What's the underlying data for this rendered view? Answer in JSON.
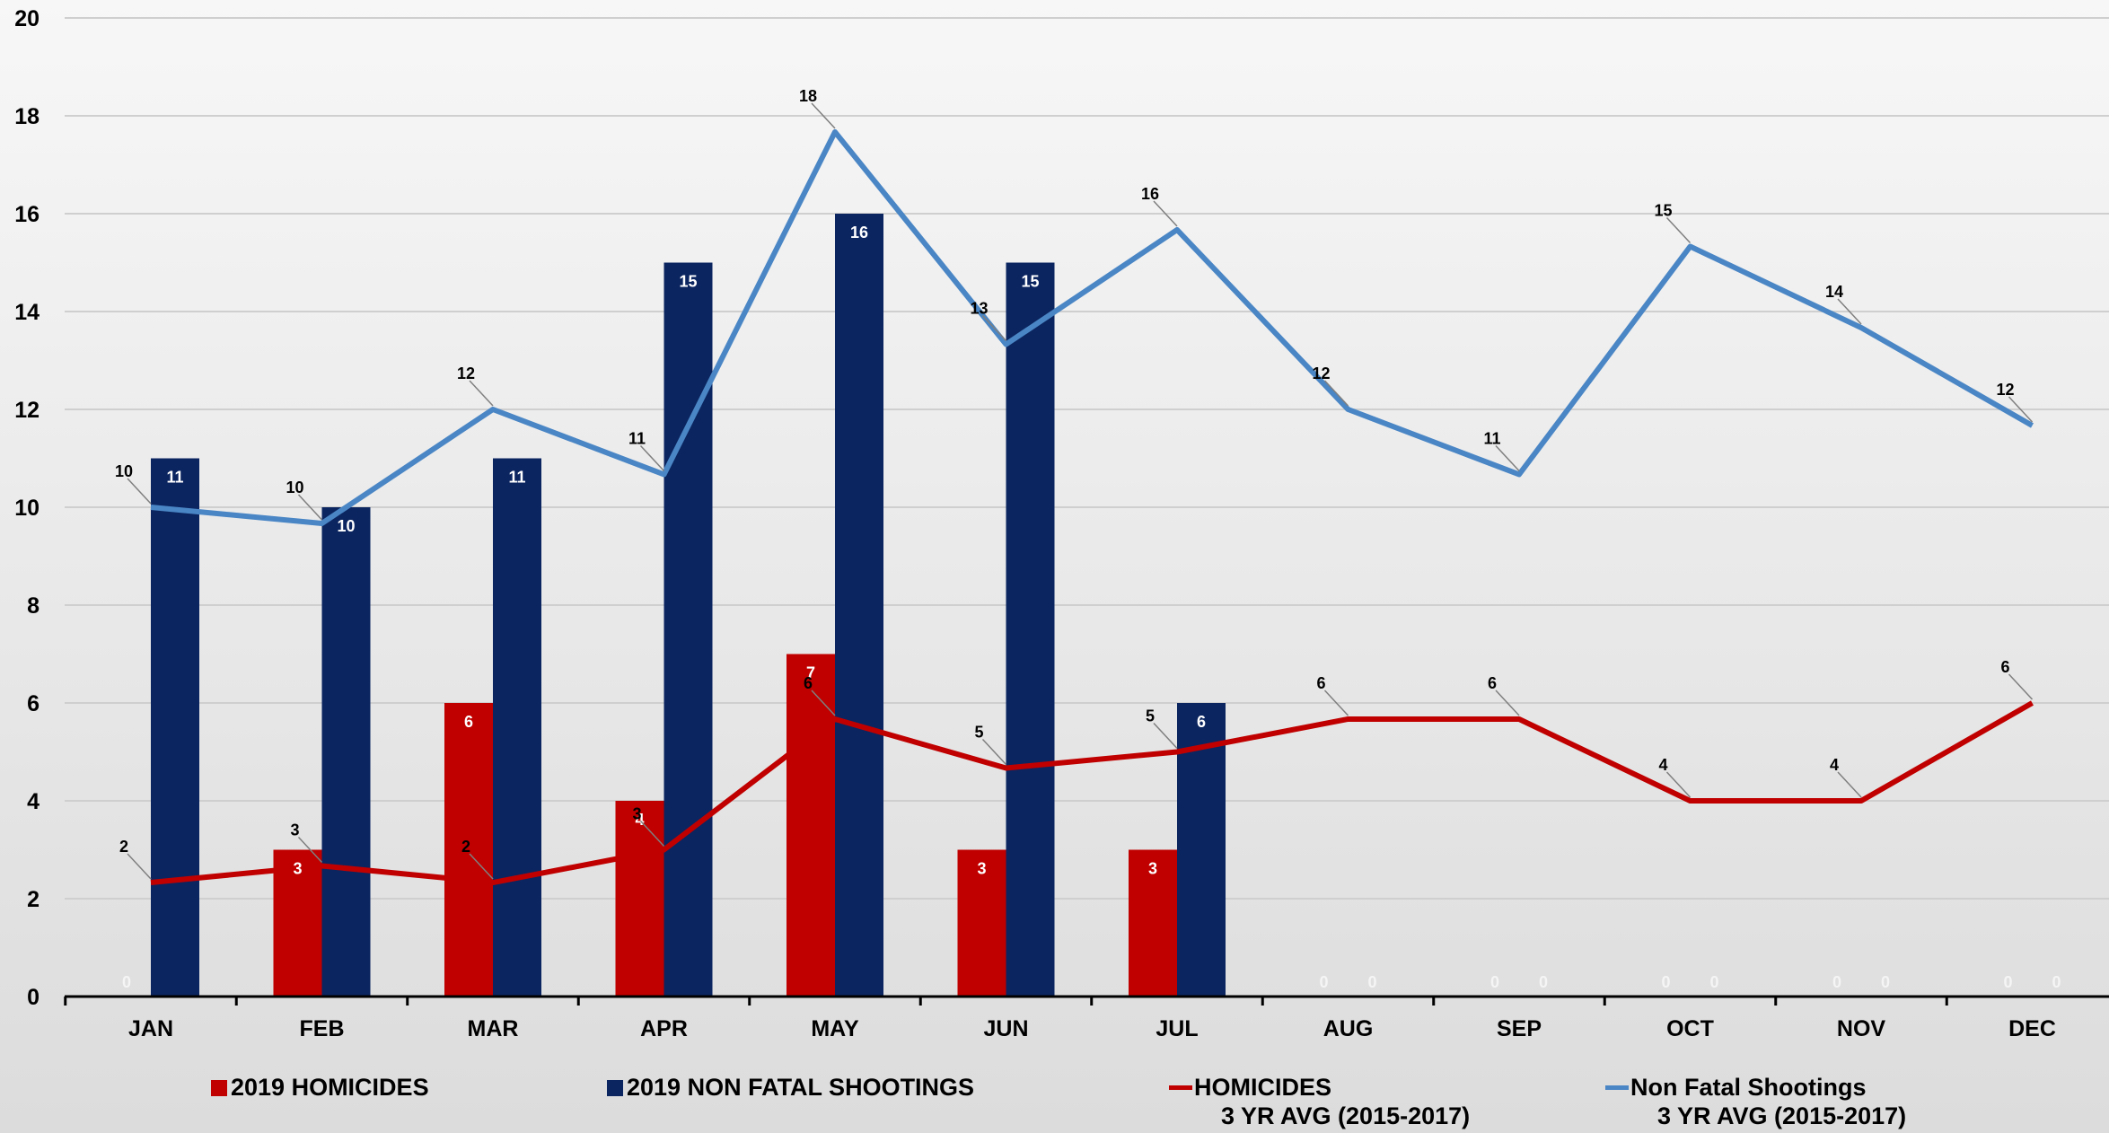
{
  "colors": {
    "homicides": "#c00000",
    "shootings": "#0b2560",
    "hom_avg": "#c00000",
    "shoot_avg": "#4a86c5"
  },
  "chart_data": {
    "type": "bar",
    "categories": [
      "JAN",
      "FEB",
      "MAR",
      "APR",
      "MAY",
      "JUN",
      "JUL",
      "AUG",
      "SEP",
      "OCT",
      "NOV",
      "DEC"
    ],
    "ylim": [
      0,
      20
    ],
    "yticks": [
      0,
      2,
      4,
      6,
      8,
      10,
      12,
      14,
      16,
      18,
      20
    ],
    "grid": true,
    "legend_position": "bottom",
    "series": [
      {
        "name": "2019 HOMICIDES",
        "kind": "bar",
        "values": [
          0,
          3,
          6,
          4,
          7,
          3,
          3,
          0,
          0,
          0,
          0,
          0
        ],
        "labels": [
          "0",
          "3",
          "6",
          "4",
          "7",
          "3",
          "3",
          "0",
          "0",
          "0",
          "0",
          "0"
        ]
      },
      {
        "name": "2019 NON FATAL SHOOTINGS",
        "kind": "bar",
        "values": [
          11,
          10,
          11,
          15,
          16,
          15,
          6,
          0,
          0,
          0,
          0,
          0
        ],
        "labels": [
          "11",
          "10",
          "11",
          "15",
          "16",
          "15",
          "6",
          "0",
          "0",
          "0",
          "0",
          "0"
        ]
      },
      {
        "name": "HOMICIDES 3 YR AVG (2015-2017)",
        "kind": "line",
        "values": [
          2.33,
          2.67,
          2.33,
          3.0,
          5.67,
          4.67,
          5.0,
          5.67,
          5.67,
          4.0,
          4.0,
          6.0
        ],
        "labels": [
          "2",
          "3",
          "2",
          "3",
          "6",
          "5",
          "5",
          "6",
          "6",
          "4",
          "4",
          "6"
        ]
      },
      {
        "name": "Non Fatal Shootings 3 YR AVG (2015-2017)",
        "kind": "line",
        "values": [
          10.0,
          9.67,
          12.0,
          10.67,
          17.67,
          13.33,
          15.67,
          12.0,
          10.67,
          15.33,
          13.67,
          11.67
        ],
        "labels": [
          "10",
          "10",
          "12",
          "11",
          "18",
          "13",
          "16",
          "12",
          "11",
          "15",
          "14",
          "12"
        ]
      }
    ]
  },
  "legend": {
    "homicides": "2019 HOMICIDES",
    "shootings": "2019 NON FATAL SHOOTINGS",
    "hom_avg_line1": "HOMICIDES",
    "hom_avg_line2": "3 YR AVG (2015-2017)",
    "shoot_avg_line1": "Non Fatal Shootings",
    "shoot_avg_line2": "3 YR AVG (2015-2017)"
  }
}
